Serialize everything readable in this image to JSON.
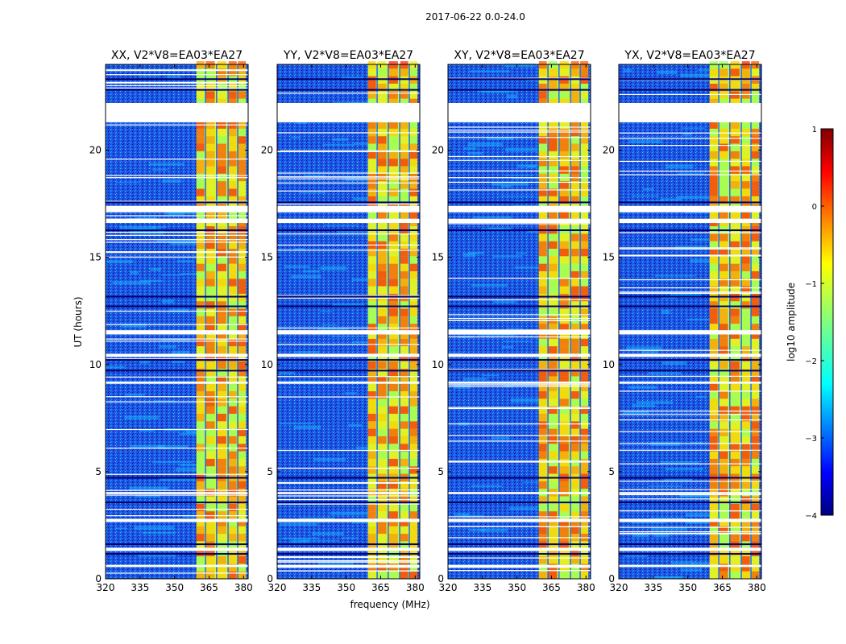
{
  "suptitle": "2017-06-22 0.0-24.0",
  "chart_data": {
    "type": "heatmap",
    "colormap": "jet",
    "xlabel": "frequency (MHz)",
    "ylabel": "UT (hours)",
    "xlim": [
      320,
      382
    ],
    "ylim": [
      0,
      24
    ],
    "xticks": [
      320,
      335,
      350,
      365,
      380
    ],
    "yticks": [
      0,
      5,
      10,
      15,
      20
    ],
    "panels": [
      {
        "title": "XX, V2*V8=EA03*EA27"
      },
      {
        "title": "YY, V2*V8=EA03*EA27"
      },
      {
        "title": "XY, V2*V8=EA03*EA27"
      },
      {
        "title": "YX, V2*V8=EA03*EA27"
      }
    ],
    "rfi_band_mhz": [
      359.5,
      381
    ],
    "colorbar": {
      "label": "log10 amplitude",
      "range": [
        -4,
        1
      ],
      "ticks": [
        1,
        0,
        -1,
        -2,
        -3,
        -4
      ]
    }
  }
}
